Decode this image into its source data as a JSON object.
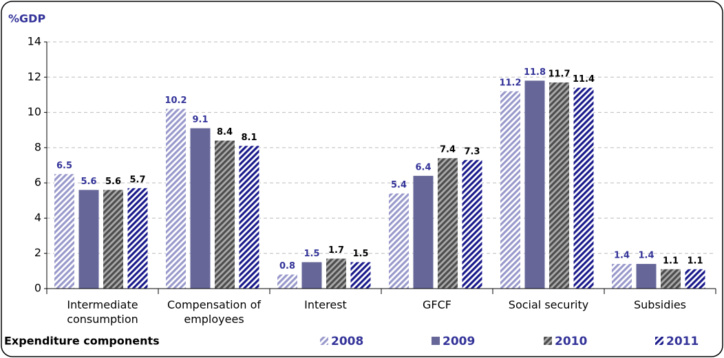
{
  "chart_data": {
    "type": "bar",
    "y_label": "%GDP",
    "x_label": "Expenditure components",
    "categories": [
      "Intermediate consumption",
      "Compensation of employees",
      "Interest",
      "GFCF",
      "Social security",
      "Subsidies"
    ],
    "series": [
      {
        "name": "2008",
        "color": "#9999cc",
        "hatch": true,
        "label_color": "#333399",
        "values": [
          6.5,
          10.2,
          0.8,
          5.4,
          11.2,
          1.4
        ]
      },
      {
        "name": "2009",
        "color": "#666699",
        "hatch": false,
        "label_color": "#333399",
        "values": [
          5.6,
          9.1,
          1.5,
          6.4,
          11.8,
          1.4
        ]
      },
      {
        "name": "2010",
        "color": "#4d4d4d",
        "hatch": true,
        "label_color": "#000000",
        "values": [
          5.6,
          8.4,
          1.7,
          7.4,
          11.7,
          1.1
        ]
      },
      {
        "name": "2011",
        "color": "#1a1a8c",
        "hatch": true,
        "label_color": "#000000",
        "values": [
          5.7,
          8.1,
          1.5,
          7.3,
          11.4,
          1.1
        ]
      }
    ],
    "ylim": [
      0,
      14
    ],
    "yticks": [
      0,
      2,
      4,
      6,
      8,
      10,
      12,
      14
    ],
    "grid": true
  }
}
